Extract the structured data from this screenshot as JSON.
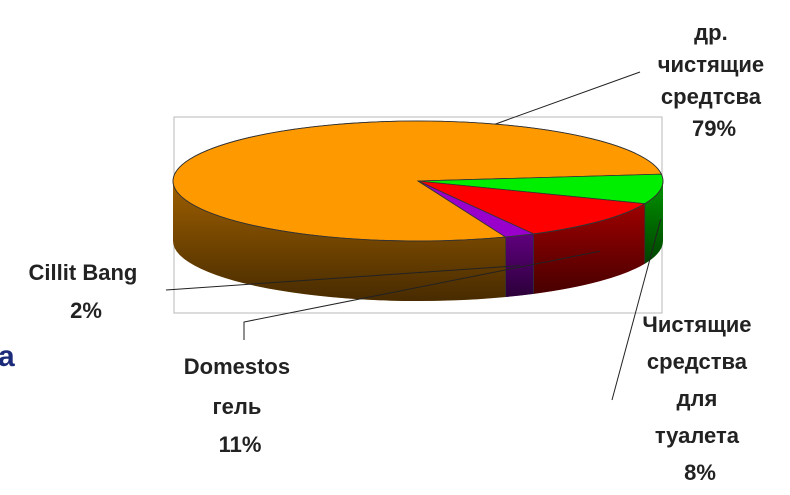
{
  "background_fragment": {
    "text": "a",
    "color": "#1c2a7a"
  },
  "chart_data": {
    "type": "pie",
    "three_d": true,
    "legend": "none",
    "slices": [
      {
        "label_lines": [
          "др.",
          "чистящие",
          "средтсва"
        ],
        "value": 79,
        "percent_label": "79%",
        "color": "#ff9900"
      },
      {
        "label_lines": [
          "Чистящие",
          "средства",
          "для",
          "туалета"
        ],
        "value": 8,
        "percent_label": "8%",
        "color": "#00ee00"
      },
      {
        "label_lines": [
          "Domestos",
          "гель"
        ],
        "value": 11,
        "percent_label": "11%",
        "color": "#ff0000"
      },
      {
        "label_lines": [
          "Cillit Bang"
        ],
        "value": 2,
        "percent_label": "2%",
        "color": "#9900cc"
      }
    ]
  }
}
